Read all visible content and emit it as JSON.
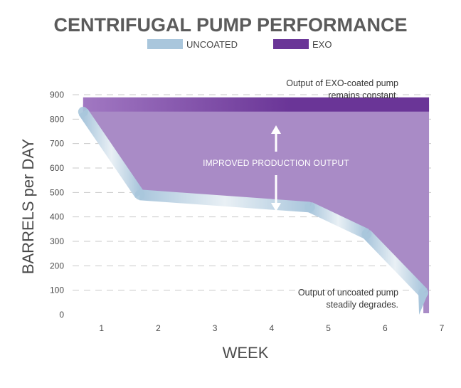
{
  "chart_data": {
    "type": "area",
    "title": "CENTRIFUGAL PUMP PERFORMANCE",
    "xlabel": "WEEK",
    "ylabel": "BARRELS per DAY",
    "xlim": [
      0,
      7
    ],
    "ylim": [
      0,
      900
    ],
    "x_ticks": [
      "1",
      "2",
      "3",
      "4",
      "5",
      "6",
      "7"
    ],
    "y_ticks": [
      "0",
      "100",
      "200",
      "300",
      "400",
      "500",
      "600",
      "700",
      "800",
      "900"
    ],
    "grid": true,
    "legend_position": "top",
    "series": [
      {
        "name": "UNCOATED",
        "color": "#a9c6dc",
        "x": [
          0.65,
          1.65,
          4.65,
          5.65,
          6.65
        ],
        "y": [
          830,
          490,
          440,
          330,
          90
        ]
      },
      {
        "name": "EXO",
        "color": "#6a3597",
        "x": [
          0.65,
          6.75
        ],
        "y": [
          860,
          860
        ]
      }
    ],
    "annotations": {
      "exo_note_line1": "Output of EXO-coated pump",
      "exo_note_line2": "remains constant.",
      "uncoated_note_line1": "Output of uncoated pump",
      "uncoated_note_line2": "steadily degrades.",
      "improvement": "IMPROVED PRODUCTION OUTPUT"
    },
    "colors": {
      "fill": "#a98bc6",
      "band_start": "#a178c2",
      "band_end": "#6a3597",
      "uncoated_light": "#e9f0f5",
      "uncoated_dark": "#a9c6dc"
    }
  }
}
